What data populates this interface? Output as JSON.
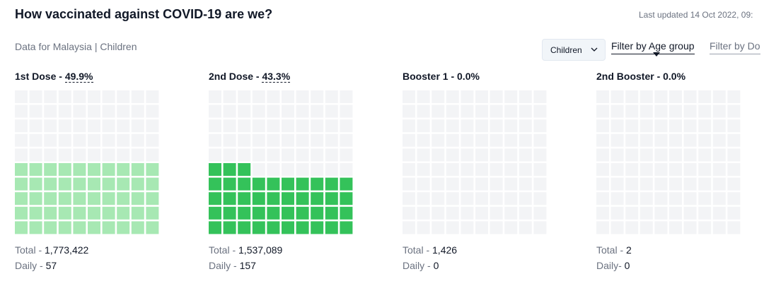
{
  "header": {
    "title": "How vaccinated against COVID-19 are we?",
    "last_updated": "Last updated 14 Oct 2022, 09:",
    "subtitle": "Data for Malaysia | Children"
  },
  "controls": {
    "select_value": "Children",
    "tab_active": "Filter by Age group",
    "tab_inactive": "Filter by Do"
  },
  "colors": {
    "empty_cell": "#f3f4f6",
    "dose1_fill": "#a7e8b3",
    "dose2_fill": "#34c25a"
  },
  "chart_data": {
    "type": "waffle",
    "grid": {
      "rows": 10,
      "cols": 10
    },
    "panels": [
      {
        "name": "1st Dose",
        "title_prefix": "1st Dose - ",
        "percent_label": "49.9%",
        "percent": 49.9,
        "fill_color": "#a7e8b3",
        "total_label": "Total - ",
        "total": "1,773,422",
        "daily_label": "Daily - ",
        "daily": "57"
      },
      {
        "name": "2nd Dose",
        "title_prefix": "2nd Dose - ",
        "percent_label": "43.3%",
        "percent": 43.3,
        "fill_color": "#34c25a",
        "total_label": "Total - ",
        "total": "1,537,089",
        "daily_label": "Daily - ",
        "daily": "157"
      },
      {
        "name": "Booster 1",
        "title_prefix": "Booster 1 - ",
        "percent_label": "0.0%",
        "percent": 0.0,
        "fill_color": "#34c25a",
        "total_label": "Total - ",
        "total": "1,426",
        "daily_label": "Daily - ",
        "daily": "0"
      },
      {
        "name": "2nd Booster",
        "title_prefix": "2nd Booster - ",
        "percent_label": "0.0%",
        "percent": 0.0,
        "fill_color": "#34c25a",
        "total_label": "Total - ",
        "total": "2",
        "daily_label": "Daily- ",
        "daily": "0"
      }
    ]
  }
}
